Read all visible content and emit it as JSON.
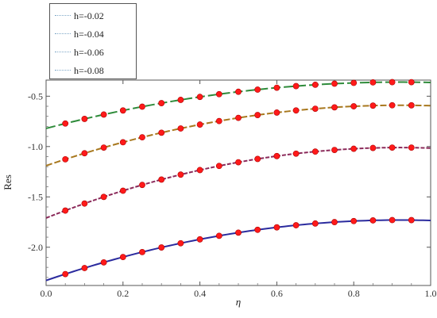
{
  "chart_data": {
    "type": "line",
    "xlabel": "η",
    "ylabel": "Res",
    "xlim": [
      0.0,
      1.0
    ],
    "ylim": [
      -2.38,
      -0.34
    ],
    "x_ticks": [
      0.0,
      0.2,
      0.4,
      0.6,
      0.8,
      1.0
    ],
    "x_tick_labels": [
      "0.0",
      "0.2",
      "0.4",
      "0.6",
      "0.8",
      "1.0"
    ],
    "y_ticks": [
      -0.5,
      -1.0,
      -1.5,
      -2.0
    ],
    "y_tick_labels": [
      "-0.5",
      "-1.0",
      "-1.5",
      "-2.0"
    ],
    "legend_position": "top-left",
    "legend": [
      "h=-0.02",
      "h=-0.04",
      "h=-0.06",
      "h=-0.08"
    ],
    "marker_color": "#ff1a1a",
    "marker_x": [
      0.05,
      0.1,
      0.15,
      0.2,
      0.25,
      0.3,
      0.35,
      0.4,
      0.45,
      0.5,
      0.55,
      0.6,
      0.65,
      0.7,
      0.75,
      0.8,
      0.85,
      0.9,
      0.95
    ],
    "series": [
      {
        "name": "h=-0.02",
        "color": "#2e8b3a",
        "dash": "long-dash",
        "y0": -0.82,
        "ymax": -0.36,
        "xmax": 0.92
      },
      {
        "name": "h=-0.04",
        "color": "#a8781e",
        "dash": "dash",
        "y0": -1.19,
        "ymax": -0.59,
        "xmax": 0.92
      },
      {
        "name": "h=-0.06",
        "color": "#8b2a5a",
        "dash": "short-dash",
        "y0": -1.71,
        "ymax": -1.01,
        "xmax": 0.92
      },
      {
        "name": "h=-0.08",
        "color": "#2b2b9e",
        "dash": "solid",
        "y0": -2.33,
        "ymax": -1.73,
        "xmax": 0.92
      }
    ]
  }
}
